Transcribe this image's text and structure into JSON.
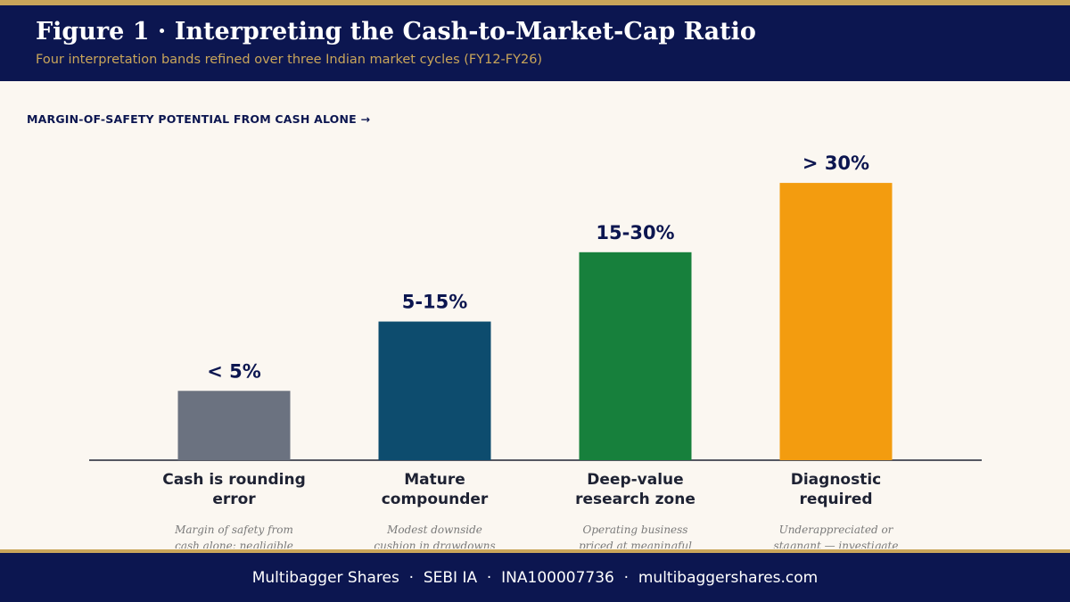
{
  "header": {
    "title": "Figure 1  ·  Interpreting the Cash-to-Market-Cap Ratio",
    "subtitle": "Four interpretation bands refined over three Indian market cycles (FY12-FY26)"
  },
  "axis_caption": "MARGIN-OF-SAFETY POTENTIAL FROM CASH ALONE  →",
  "chart_data": {
    "type": "bar",
    "categories": [
      "Cash is rounding error",
      "Mature compounder",
      "Deep-value research zone",
      "Diagnostic required"
    ],
    "category_lines": [
      [
        "Cash is rounding",
        "error"
      ],
      [
        "Mature",
        "compounder"
      ],
      [
        "Deep-value",
        "research zone"
      ],
      [
        "Diagnostic",
        "required"
      ]
    ],
    "data_labels": [
      "< 5%",
      "5-15%",
      "15-30%",
      "> 30%"
    ],
    "values": [
      1,
      2,
      3,
      4
    ],
    "ylim": [
      0,
      4.4
    ],
    "descriptions": [
      [
        "Margin of safety from",
        "cash alone: negligible"
      ],
      [
        "Modest downside",
        "cushion in drawdowns"
      ],
      [
        "Operating business",
        "priced at meaningful"
      ],
      [
        "Underappreciated or",
        "stagnant — investigate"
      ]
    ],
    "colors": [
      "#6b7280",
      "#0d4c6e",
      "#17803c",
      "#f39c0f"
    ],
    "label_color": "#0c1650",
    "grid": false
  },
  "footer": {
    "text": "Multibagger Shares  ·  SEBI IA  ·  INA100007736  ·  multibaggershares.com"
  },
  "colors": {
    "navy": "#0c1650",
    "gold": "#c9a55a",
    "background": "#fbf7f1"
  }
}
